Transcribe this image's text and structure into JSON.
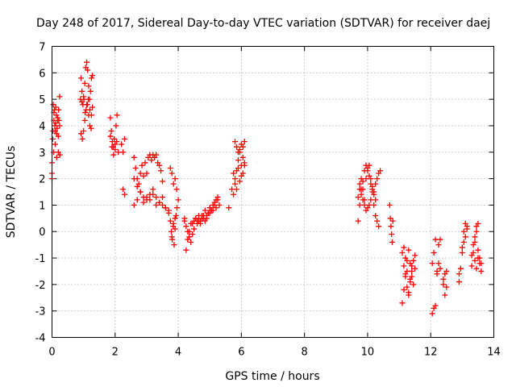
{
  "chart_data": {
    "type": "scatter",
    "title": "Day 248 of 2017, Sidereal Day-to-day VTEC variation (SDTVAR) for receiver daej",
    "xlabel": "GPS time / hours",
    "ylabel": "SDTVAR / TECUs",
    "xlim": [
      0,
      14
    ],
    "ylim": [
      -4,
      7
    ],
    "xticks": [
      "0",
      "2",
      "4",
      "6",
      "8",
      "10",
      "12",
      "14"
    ],
    "yticks": [
      "-4",
      "-3",
      "-2",
      "-1",
      "0",
      "1",
      "2",
      "3",
      "4",
      "5",
      "6",
      "7"
    ],
    "grid": true,
    "marker": "+",
    "color": "#ff0000",
    "series": [
      {
        "x": [
          0.0,
          0.02,
          0.04,
          0.06,
          0.08,
          0.1,
          0.12,
          0.14,
          0.16,
          0.18,
          0.2,
          0.22,
          0.24,
          0.0,
          0.03,
          0.06,
          0.09,
          0.12,
          0.15,
          0.18,
          0.21,
          0.24,
          0.0,
          0.05,
          0.1,
          0.15,
          0.2,
          0.25,
          0.92,
          0.95,
          0.98,
          1.01,
          1.04,
          1.07,
          1.1,
          1.13,
          1.16,
          1.19,
          1.22,
          1.25,
          1.28,
          0.92,
          0.96,
          1.0,
          1.04,
          1.08,
          1.12,
          1.16,
          1.2,
          1.24,
          1.28,
          0.9,
          0.95,
          1.0,
          1.05,
          1.1,
          1.15,
          1.2,
          1.25,
          1.85,
          1.88,
          1.91,
          1.94,
          1.97,
          2.0,
          2.03,
          2.06,
          1.85,
          1.9,
          1.95,
          2.0,
          2.05,
          2.1,
          2.2,
          2.25,
          2.3,
          2.25,
          2.3,
          2.6,
          2.65,
          2.7,
          2.75,
          2.8,
          2.85,
          2.9,
          2.95,
          3.0,
          3.05,
          3.1,
          3.15,
          3.2,
          3.25,
          3.3,
          3.35,
          3.4,
          3.45,
          3.5,
          2.6,
          2.7,
          2.8,
          2.9,
          3.0,
          3.1,
          3.2,
          3.3,
          3.4,
          3.5,
          3.6,
          3.7,
          2.6,
          2.7,
          2.8,
          2.9,
          3.0,
          3.1,
          3.2,
          3.3,
          3.4,
          3.5,
          3.6,
          3.7,
          3.75,
          3.8,
          3.85,
          3.9,
          3.95,
          4.0,
          3.75,
          3.78,
          3.81,
          3.84,
          3.87,
          3.9,
          3.93,
          3.96,
          3.8,
          3.85,
          3.9,
          4.2,
          4.25,
          4.3,
          4.35,
          4.4,
          4.45,
          4.5,
          4.55,
          4.6,
          4.65,
          4.7,
          4.75,
          4.8,
          4.85,
          4.9,
          4.95,
          5.0,
          5.05,
          5.1,
          5.15,
          5.2,
          5.25,
          5.3,
          4.2,
          4.3,
          4.4,
          4.5,
          4.6,
          4.7,
          4.8,
          4.9,
          5.0,
          5.1,
          5.2,
          4.25,
          4.35,
          4.45,
          4.55,
          4.65,
          4.75,
          4.85,
          4.95,
          5.05,
          5.15,
          5.25,
          5.6,
          5.7,
          5.75,
          5.8,
          5.85,
          5.9,
          5.95,
          6.0,
          6.05,
          6.1,
          5.8,
          5.85,
          5.9,
          5.95,
          6.0,
          6.05,
          6.1,
          5.75,
          5.8,
          5.85,
          5.9,
          5.95,
          6.0,
          6.05,
          6.1,
          9.7,
          9.75,
          9.8,
          9.85,
          9.9,
          9.95,
          10.0,
          10.05,
          10.1,
          10.15,
          10.2,
          10.25,
          10.3,
          10.35,
          10.4,
          9.7,
          9.75,
          9.8,
          9.85,
          9.9,
          9.95,
          10.0,
          10.05,
          10.1,
          10.15,
          10.2,
          10.25,
          9.75,
          9.8,
          9.85,
          9.9,
          9.95,
          10.0,
          10.05,
          10.1,
          10.15,
          10.2,
          10.25,
          10.3,
          10.35,
          10.7,
          10.72,
          10.74,
          10.76,
          10.78,
          10.8,
          11.1,
          11.15,
          11.2,
          11.25,
          11.3,
          11.35,
          11.4,
          11.45,
          11.5,
          11.1,
          11.15,
          11.2,
          11.25,
          11.3,
          11.35,
          11.4,
          11.45,
          11.5,
          11.15,
          11.2,
          11.25,
          11.3,
          11.35,
          11.4,
          12.05,
          12.1,
          12.15,
          12.2,
          12.25,
          12.3,
          12.05,
          12.1,
          12.15,
          12.2,
          12.25,
          12.3,
          12.4,
          12.45,
          12.5,
          12.4,
          12.45,
          12.5,
          12.9,
          12.95,
          13.0,
          13.05,
          13.1,
          13.15,
          12.9,
          12.95,
          13.0,
          13.05,
          13.1,
          13.15,
          13.3,
          13.35,
          13.4,
          13.45,
          13.5,
          13.55,
          13.6,
          13.3,
          13.35,
          13.4,
          13.45,
          13.5,
          13.55,
          13.6,
          13.4,
          13.45,
          13.5
        ],
        "y": [
          2.0,
          3.5,
          4.8,
          4.2,
          4.6,
          3.8,
          4.1,
          4.4,
          3.9,
          4.3,
          3.6,
          4.2,
          5.1,
          2.2,
          3.8,
          4.5,
          4.0,
          4.7,
          3.7,
          4.2,
          4.6,
          4.0,
          2.6,
          3.0,
          3.3,
          2.8,
          3.0,
          2.9,
          5.8,
          5.3,
          4.8,
          5.0,
          5.6,
          6.2,
          6.4,
          6.1,
          5.5,
          5.0,
          5.3,
          5.8,
          5.9,
          3.7,
          3.5,
          3.8,
          4.2,
          4.6,
          4.8,
          4.4,
          4.0,
          3.9,
          4.7,
          5.0,
          4.9,
          5.1,
          4.5,
          4.8,
          5.0,
          4.6,
          4.4,
          4.3,
          3.8,
          3.4,
          3.2,
          3.5,
          3.3,
          4.0,
          4.4,
          3.6,
          3.2,
          2.9,
          3.1,
          3.4,
          3.0,
          3.3,
          3.0,
          3.5,
          1.6,
          1.4,
          2.8,
          2.4,
          2.0,
          1.8,
          2.2,
          2.5,
          2.1,
          2.6,
          2.2,
          2.8,
          2.9,
          2.7,
          2.9,
          2.8,
          2.9,
          2.6,
          2.5,
          2.3,
          1.9,
          1.0,
          1.2,
          1.5,
          1.1,
          1.3,
          1.2,
          1.4,
          1.0,
          1.1,
          1.3,
          0.9,
          0.8,
          2.0,
          1.7,
          1.5,
          1.3,
          1.2,
          1.4,
          1.6,
          1.3,
          1.1,
          1.0,
          0.9,
          0.7,
          2.4,
          2.2,
          1.8,
          2.0,
          1.6,
          1.2,
          0.4,
          0.0,
          -0.3,
          0.2,
          -0.5,
          0.1,
          0.6,
          0.9,
          -0.2,
          0.3,
          0.5,
          0.5,
          0.2,
          -0.3,
          0.0,
          0.3,
          -0.1,
          0.4,
          0.5,
          0.3,
          0.6,
          0.4,
          0.5,
          0.6,
          0.8,
          0.5,
          0.7,
          0.9,
          0.8,
          1.0,
          1.1,
          1.2,
          1.3,
          1.0,
          0.4,
          0.0,
          -0.4,
          0.1,
          0.4,
          0.3,
          0.5,
          0.6,
          0.7,
          0.8,
          0.9,
          -0.7,
          -0.2,
          0.3,
          0.5,
          0.4,
          0.6,
          0.4,
          0.7,
          0.8,
          1.0,
          1.2,
          0.9,
          1.6,
          2.2,
          3.4,
          3.2,
          3.0,
          3.1,
          3.3,
          2.8,
          2.6,
          2.0,
          2.3,
          2.7,
          3.0,
          2.5,
          3.2,
          3.4,
          1.4,
          1.8,
          1.6,
          2.4,
          1.9,
          2.1,
          2.2,
          2.5,
          0.4,
          1.0,
          1.6,
          1.9,
          2.3,
          2.5,
          2.4,
          2.1,
          1.8,
          1.6,
          1.5,
          1.8,
          2.0,
          2.2,
          2.3,
          1.3,
          1.6,
          2.0,
          1.6,
          1.2,
          2.0,
          2.3,
          2.5,
          2.0,
          1.7,
          1.4,
          1.2,
          1.8,
          1.4,
          1.2,
          1.0,
          0.8,
          0.9,
          1.0,
          1.2,
          1.5,
          1.0,
          0.6,
          0.4,
          0.2,
          1.0,
          0.5,
          0.2,
          -0.1,
          -0.4,
          0.4,
          -0.8,
          -1.3,
          -1.7,
          -2.1,
          -2.4,
          -1.9,
          -1.5,
          -1.1,
          -0.9,
          -2.7,
          -2.2,
          -1.6,
          -1.1,
          -0.7,
          -1.2,
          -1.7,
          -2.0,
          -1.4,
          -0.6,
          -1.0,
          -1.5,
          -2.3,
          -1.8,
          -1.3,
          -1.2,
          -0.8,
          -0.3,
          -1.5,
          -0.5,
          -0.3,
          -3.1,
          -2.9,
          -2.8,
          -1.6,
          -1.2,
          -1.4,
          -2.0,
          -2.4,
          -2.1,
          -1.8,
          -1.6,
          -1.5,
          -1.9,
          -1.4,
          -0.8,
          -0.4,
          -0.2,
          0.1,
          -1.6,
          -1.4,
          -0.6,
          0.0,
          0.3,
          0.2,
          -0.9,
          -0.5,
          -0.2,
          0.2,
          0.3,
          -1.0,
          -1.2,
          -1.3,
          -0.8,
          -1.1,
          -1.4,
          -1.0,
          -1.2,
          -1.5,
          -0.4,
          0.0,
          -0.7
        ]
      }
    ]
  }
}
